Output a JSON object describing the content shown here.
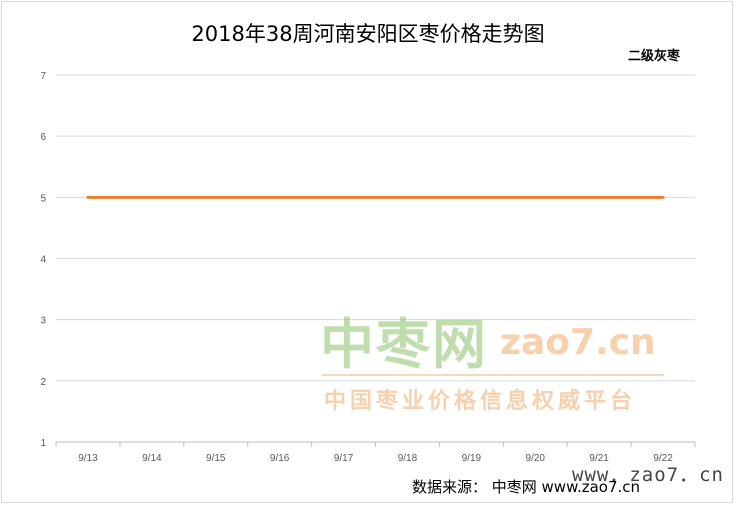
{
  "chart_data": {
    "type": "line",
    "title": "2018年38周河南安阳区枣价格走势图",
    "categories": [
      "9/13",
      "9/14",
      "9/15",
      "9/16",
      "9/17",
      "9/18",
      "9/19",
      "9/20",
      "9/21",
      "9/22"
    ],
    "series": [
      {
        "name": "二级灰枣",
        "values": [
          5,
          5,
          5,
          5,
          5,
          5,
          5,
          5,
          5,
          5
        ],
        "color": "#ed7d31"
      }
    ],
    "ylim": [
      1,
      7
    ],
    "yticks": [
      1,
      2,
      3,
      4,
      5,
      6,
      7
    ],
    "grid": true,
    "legend": "top-right"
  },
  "watermark": {
    "main": "中枣网",
    "url": "zao7.cn",
    "subtitle": "中国枣业价格信息权威平台",
    "url2": "www．zao7．cn"
  },
  "source_text": "数据来源：  中枣网 www.zao7.cn"
}
